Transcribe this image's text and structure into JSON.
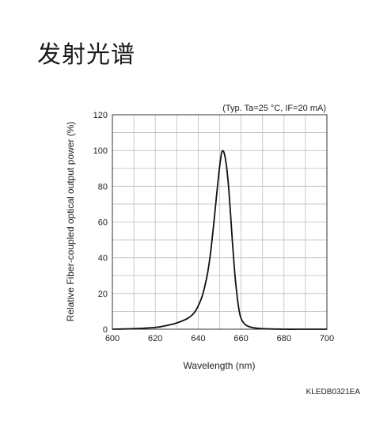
{
  "heading": "发射光谱",
  "chart_data": {
    "type": "line",
    "title": "",
    "conditions": "(Typ. Ta=25 °C, IF=20 mA)",
    "xlabel": "Wavelength (nm)",
    "ylabel": "Relative Fiber-coupled optical output power (%)",
    "xlim": [
      600,
      700
    ],
    "ylim": [
      0,
      120
    ],
    "xticks": [
      600,
      620,
      640,
      660,
      680,
      700
    ],
    "yticks": [
      0,
      20,
      40,
      60,
      80,
      100,
      120
    ],
    "grid": true,
    "series": [
      {
        "x": [
          600,
          610,
          620,
          625,
          630,
          635,
          638,
          640,
          642,
          644,
          645,
          646,
          647,
          648,
          649,
          650,
          651,
          652,
          653,
          654,
          655,
          656,
          657,
          658,
          659,
          660,
          662,
          665,
          670,
          680,
          690,
          700
        ],
        "y": [
          0,
          0.3,
          1,
          2,
          3.5,
          6,
          9,
          13,
          19,
          29,
          36,
          45,
          56,
          68,
          80,
          91,
          99,
          99,
          93,
          82,
          66,
          48,
          32,
          20,
          11,
          6,
          2.5,
          1,
          0.3,
          0,
          0,
          0
        ]
      }
    ]
  },
  "image_code": "KLEDB0321EA"
}
